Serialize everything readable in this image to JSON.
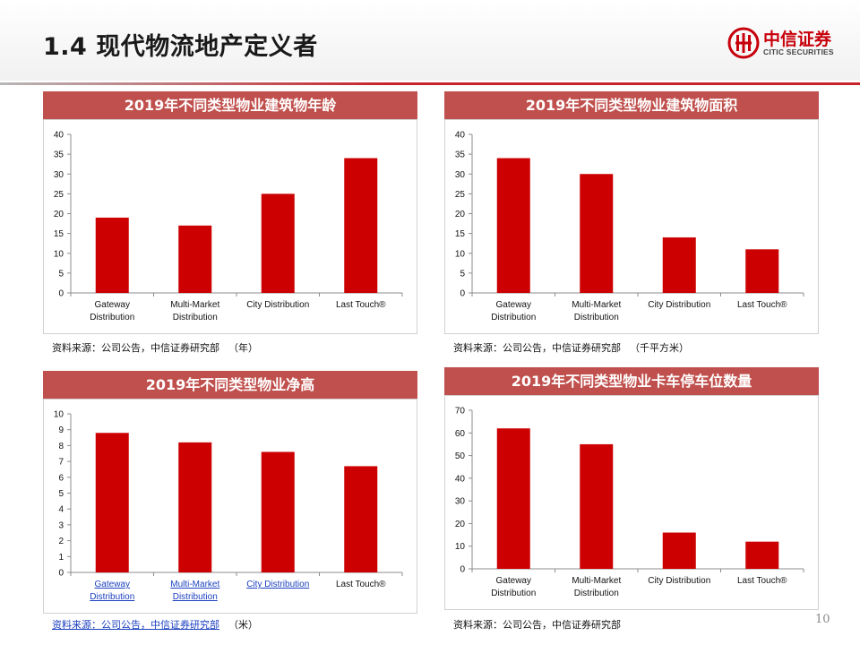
{
  "page": {
    "title": "1.4 现代物流地产定义者",
    "logo_cn": "中信证券",
    "logo_en": "CITIC SECURITIES",
    "page_number": "10",
    "brand_color": "#c7000b",
    "panel_header_color": "#c0504d",
    "bar_color": "#cc0000"
  },
  "sources": [
    {
      "text": "资料来源：公司公告，中信证券研究部",
      "unit": "（年）"
    },
    {
      "text": "资料来源：公司公告，中信证券研究部",
      "unit": "（千平方米）"
    },
    {
      "text": "资料来源：公司公告，中信证券研究部",
      "unit": "（米）"
    },
    {
      "text": "资料来源：公司公告，中信证券研究部",
      "unit": ""
    }
  ],
  "chart_data": [
    {
      "type": "bar",
      "title": "2019年不同类型物业建筑物年龄",
      "categories": [
        [
          "Gateway",
          "Distribution"
        ],
        [
          "Multi-Market",
          "Distribution"
        ],
        [
          "City Distribution"
        ],
        [
          "Last Touch®"
        ]
      ],
      "values": [
        19,
        17,
        25,
        34
      ],
      "ylim": [
        0,
        40
      ],
      "yticks": [
        0,
        5,
        10,
        15,
        20,
        25,
        30,
        35,
        40
      ],
      "grid": false
    },
    {
      "type": "bar",
      "title": "2019年不同类型物业建筑物面积",
      "categories": [
        [
          "Gateway",
          "Distribution"
        ],
        [
          "Multi-Market",
          "Distribution"
        ],
        [
          "City Distribution"
        ],
        [
          "Last Touch®"
        ]
      ],
      "values": [
        34,
        30,
        14,
        11
      ],
      "ylim": [
        0,
        40
      ],
      "yticks": [
        0,
        5,
        10,
        15,
        20,
        25,
        30,
        35,
        40
      ],
      "grid": false
    },
    {
      "type": "bar",
      "title": "2019年不同类型物业净高",
      "categories": [
        [
          "Gateway",
          "Distribution"
        ],
        [
          "Multi-Market",
          "Distribution"
        ],
        [
          "City Distribution"
        ],
        [
          "Last Touch®"
        ]
      ],
      "values": [
        8.8,
        8.2,
        7.6,
        6.7
      ],
      "ylim": [
        0,
        10
      ],
      "yticks": [
        0,
        1,
        2,
        3,
        4,
        5,
        6,
        7,
        8,
        9,
        10
      ],
      "grid": false
    },
    {
      "type": "bar",
      "title": "2019年不同类型物业卡车停车位数量",
      "categories": [
        [
          "Gateway",
          "Distribution"
        ],
        [
          "Multi-Market",
          "Distribution"
        ],
        [
          "City Distribution"
        ],
        [
          "Last Touch®"
        ]
      ],
      "values": [
        62,
        55,
        16,
        12
      ],
      "ylim": [
        0,
        70
      ],
      "yticks": [
        0,
        10,
        20,
        30,
        40,
        50,
        60,
        70
      ],
      "grid": false
    }
  ]
}
